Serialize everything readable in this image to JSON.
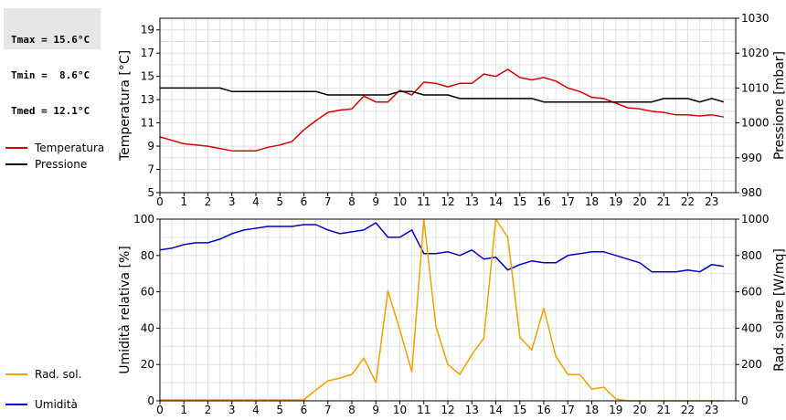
{
  "stats": {
    "tmax": "Tmax = 15.6°C",
    "tmin": "Tmin =  8.6°C",
    "tmed": "Tmed = 12.1°C"
  },
  "chart_data": [
    {
      "type": "line",
      "ylabel": "Temperatura [°C]",
      "y2label": "Pressione [mbar]",
      "ylim": [
        5,
        20
      ],
      "yticks": [
        5,
        7,
        9,
        11,
        13,
        15,
        17,
        19
      ],
      "y2lim": [
        980,
        1030
      ],
      "y2ticks": [
        980,
        990,
        1000,
        1010,
        1020,
        1030
      ],
      "xlim": [
        0,
        24
      ],
      "xticks": [
        "0",
        "1",
        "2",
        "3",
        "4",
        "5",
        "6",
        "7",
        "8",
        "9",
        "10",
        "11",
        "12",
        "13",
        "14",
        "15",
        "16",
        "17",
        "18",
        "19",
        "20",
        "21",
        "22",
        "23"
      ],
      "grid": true,
      "legend_placement": "left",
      "series": [
        {
          "name": "Temperatura",
          "axis": "left",
          "color": "#dd0000",
          "x": [
            0,
            0.5,
            1,
            1.5,
            2,
            2.5,
            3,
            3.5,
            4,
            4.5,
            5,
            5.5,
            6,
            6.5,
            7,
            7.5,
            8,
            8.5,
            9,
            9.5,
            10,
            10.5,
            11,
            11.5,
            12,
            12.5,
            13,
            13.5,
            14,
            14.5,
            15,
            15.5,
            16,
            16.5,
            17,
            17.5,
            18,
            18.5,
            19,
            19.5,
            20,
            20.5,
            21,
            21.5,
            22,
            22.5,
            23,
            23.5
          ],
          "y": [
            9.8,
            9.5,
            9.2,
            9.1,
            9.0,
            8.8,
            8.6,
            8.6,
            8.6,
            8.9,
            9.1,
            9.4,
            10.4,
            11.2,
            11.9,
            12.1,
            12.2,
            13.3,
            12.8,
            12.8,
            13.8,
            13.4,
            14.5,
            14.4,
            14.1,
            14.4,
            14.4,
            15.2,
            15.0,
            15.6,
            14.9,
            14.7,
            14.9,
            14.6,
            14.0,
            13.7,
            13.2,
            13.1,
            12.7,
            12.3,
            12.2,
            12.0,
            11.9,
            11.7,
            11.7,
            11.6,
            11.7,
            11.5
          ]
        },
        {
          "name": "Pressione",
          "axis": "right",
          "color": "#000000",
          "x": [
            0,
            0.5,
            1,
            1.5,
            2,
            2.5,
            3,
            3.5,
            4,
            4.5,
            5,
            5.5,
            6,
            6.5,
            7,
            7.5,
            8,
            8.5,
            9,
            9.5,
            10,
            10.5,
            11,
            11.5,
            12,
            12.5,
            13,
            13.5,
            14,
            14.5,
            15,
            15.5,
            16,
            16.5,
            17,
            17.5,
            18,
            18.5,
            19,
            19.5,
            20,
            20.5,
            21,
            21.5,
            22,
            22.5,
            23,
            23.5
          ],
          "y": [
            1010,
            1010,
            1010,
            1010,
            1010,
            1010,
            1009,
            1009,
            1009,
            1009,
            1009,
            1009,
            1009,
            1009,
            1008,
            1008,
            1008,
            1008,
            1008,
            1008,
            1009,
            1009,
            1008,
            1008,
            1008,
            1007,
            1007,
            1007,
            1007,
            1007,
            1007,
            1007,
            1006,
            1006,
            1006,
            1006,
            1006,
            1006,
            1006,
            1006,
            1006,
            1006,
            1007,
            1007,
            1007,
            1006,
            1007,
            1006
          ]
        }
      ]
    },
    {
      "type": "line",
      "ylabel": "Umidità relativa [%]",
      "y2label": "Rad. solare [W/mq]",
      "ylim": [
        0,
        100
      ],
      "yticks": [
        0,
        20,
        40,
        60,
        80,
        100
      ],
      "y2lim": [
        0,
        1000
      ],
      "y2ticks": [
        0,
        200,
        400,
        600,
        800,
        1000
      ],
      "xlim": [
        0,
        24
      ],
      "xticks": [
        "0",
        "1",
        "2",
        "3",
        "4",
        "5",
        "6",
        "7",
        "8",
        "9",
        "10",
        "11",
        "12",
        "13",
        "14",
        "15",
        "16",
        "17",
        "18",
        "19",
        "20",
        "21",
        "22",
        "23"
      ],
      "grid": true,
      "legend_placement": "left",
      "series": [
        {
          "name": "Umidità",
          "axis": "left",
          "color": "#0000cc",
          "x": [
            0,
            0.5,
            1,
            1.5,
            2,
            2.5,
            3,
            3.5,
            4,
            4.5,
            5,
            5.5,
            6,
            6.5,
            7,
            7.5,
            8,
            8.5,
            9,
            9.5,
            10,
            10.5,
            11,
            11.5,
            12,
            12.5,
            13,
            13.5,
            14,
            14.5,
            15,
            15.5,
            16,
            16.5,
            17,
            17.5,
            18,
            18.5,
            19,
            19.5,
            20,
            20.5,
            21,
            21.5,
            22,
            22.5,
            23,
            23.5
          ],
          "y": [
            83,
            84,
            86,
            87,
            87,
            89,
            92,
            94,
            95,
            96,
            96,
            96,
            97,
            97,
            94,
            92,
            93,
            94,
            98,
            90,
            90,
            94,
            81,
            81,
            82,
            80,
            83,
            78,
            79,
            72,
            75,
            77,
            76,
            76,
            80,
            81,
            82,
            82,
            80,
            78,
            76,
            71,
            71,
            71,
            72,
            71,
            75,
            74
          ]
        },
        {
          "name": "Rad. sol.",
          "axis": "right",
          "color": "#f0a000",
          "x": [
            0,
            0.5,
            1,
            1.5,
            2,
            2.5,
            3,
            3.5,
            4,
            4.5,
            5,
            5.5,
            6,
            6.5,
            7,
            7.5,
            8,
            8.5,
            9,
            9.5,
            10,
            10.5,
            11,
            11.5,
            12,
            12.5,
            13,
            13.5,
            14,
            14.5,
            15,
            15.5,
            16,
            16.5,
            17,
            17.5,
            18,
            18.5,
            19,
            19.5,
            20,
            20.5,
            21,
            21.5,
            22,
            22.5,
            23,
            23.5
          ],
          "y": [
            5,
            5,
            5,
            5,
            5,
            5,
            5,
            5,
            5,
            5,
            5,
            5,
            5,
            60,
            110,
            125,
            145,
            235,
            100,
            605,
            390,
            160,
            1000,
            410,
            200,
            145,
            255,
            345,
            1000,
            900,
            350,
            280,
            510,
            245,
            145,
            145,
            65,
            75,
            10,
            0,
            0,
            0,
            0,
            0,
            0,
            0,
            0,
            0
          ]
        }
      ]
    }
  ]
}
